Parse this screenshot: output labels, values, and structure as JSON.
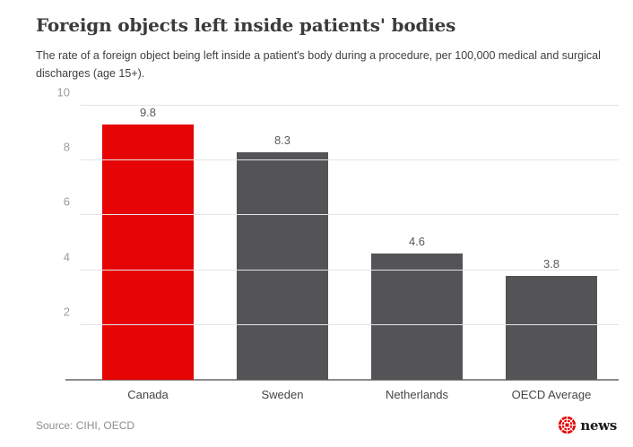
{
  "header": {
    "title": "Foreign objects left inside patients' bodies",
    "subtitle": "The rate of a foreign object being left inside a patient's body during a procedure, per 100,000 medical and surgical discharges (age 15+)."
  },
  "chart_data": {
    "type": "bar",
    "categories": [
      "Canada",
      "Sweden",
      "Netherlands",
      "OECD Average"
    ],
    "values": [
      9.8,
      8.3,
      4.6,
      3.8
    ],
    "value_labels": [
      "9.8",
      "8.3",
      "4.6",
      "3.8"
    ],
    "title": "Foreign objects left inside patients' bodies",
    "xlabel": "",
    "ylabel": "",
    "ylim": [
      0,
      10
    ],
    "yticks": [
      2,
      4,
      6,
      8,
      10
    ],
    "grid": "horizontal-only",
    "legend": "none",
    "bar_colors": [
      "#e60505",
      "#545456",
      "#545456",
      "#545456"
    ],
    "highlight_category": "Canada"
  },
  "footer": {
    "source": "Source: CIHI, OECD",
    "brand": {
      "logo_icon": "cbc-gem-logo",
      "text": "news"
    }
  },
  "colors": {
    "accent_red": "#e60505",
    "bar_gray": "#545456",
    "title_text": "#3b3b3b",
    "subtitle_text": "#3f3f3f",
    "axis_label": "#9b9b9b",
    "gridline": "#e4e4e4",
    "baseline": "#8a8a8a",
    "value_label": "#5a5a5a",
    "category_label": "#444444",
    "source_text": "#8e8e8e",
    "brand_text": "#1a1a1a",
    "background": "#ffffff"
  }
}
